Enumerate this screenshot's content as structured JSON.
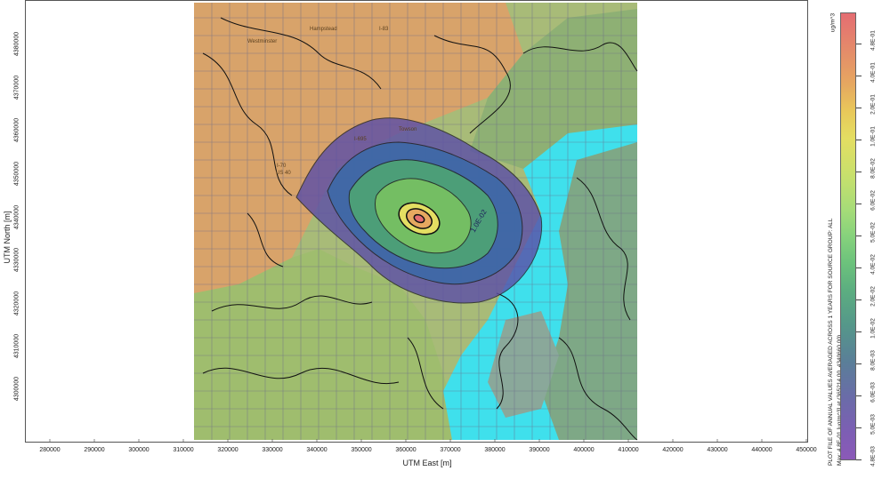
{
  "axes": {
    "y_label": "UTM North [m]",
    "x_label": "UTM East [m]",
    "y_ticks": [
      "4300000",
      "4310000",
      "4320000",
      "4330000",
      "4340000",
      "4350000",
      "4360000",
      "4370000",
      "4380000"
    ],
    "x_ticks": [
      "280000",
      "290000",
      "300000",
      "310000",
      "320000",
      "330000",
      "340000",
      "350000",
      "360000",
      "370000",
      "380000",
      "390000",
      "400000",
      "410000",
      "420000",
      "430000",
      "440000",
      "450000"
    ]
  },
  "map": {
    "basemap_labels": [
      "Westminster",
      "Hampstead",
      "I-83",
      "I-70",
      "US 40",
      "I-695",
      "Towson"
    ],
    "contour_labels": [
      "1.0E-02"
    ]
  },
  "legend": {
    "unit": "ug/m^3",
    "labels": [
      "4.8E-01",
      "4.0E-01",
      "2.0E-01",
      "1.0E-01",
      "8.0E-02",
      "6.0E-02",
      "5.0E-02",
      "4.0E-02",
      "2.0E-02",
      "1.0E-02",
      "8.0E-03",
      "6.0E-03",
      "5.0E-03",
      "4.8E-03"
    ],
    "title": "PLOT FILE OF ANNUAL VALUES AVERAGED ACROSS 1 YEARS FOR SOURCE GROUP: ALL",
    "subtitle": "Max: 4.8E-01 [ug/m^3] at (365214.00, 4340660.00)",
    "colors": [
      "#e46d72",
      "#e6a860",
      "#e4de62",
      "#86d27c",
      "#5cae80",
      "#5a7f98",
      "#8b59b8"
    ]
  }
}
